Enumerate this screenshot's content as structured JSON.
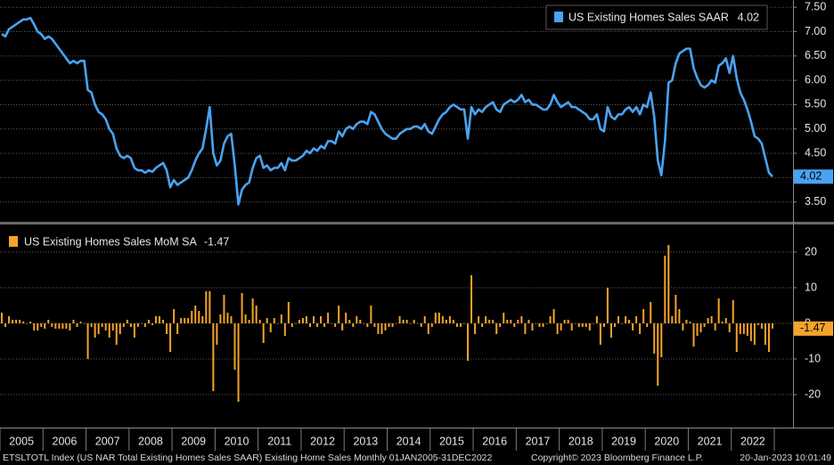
{
  "chart_data": [
    {
      "type": "line",
      "name": "US Existing Homes Sales SAAR",
      "color": "#4aa3f2",
      "ylim": [
        3.11,
        7.65
      ],
      "yticks": [
        {
          "value": 3.5,
          "label": "3.50"
        },
        {
          "value": 4,
          "label": "4.00"
        },
        {
          "value": 4.5,
          "label": "4.50"
        },
        {
          "value": 5,
          "label": "5.00"
        },
        {
          "value": 5.5,
          "label": "5.50"
        },
        {
          "value": 6,
          "label": "6.00"
        },
        {
          "value": 6.5,
          "label": "6.50"
        },
        {
          "value": 7,
          "label": "7.00"
        },
        {
          "value": 7.5,
          "label": "7.50"
        }
      ],
      "grid": true,
      "values": [
        6.95,
        6.9,
        7.05,
        7.1,
        7.15,
        7.2,
        7.25,
        7.25,
        7.28,
        7.15,
        7.0,
        6.95,
        6.85,
        6.9,
        6.85,
        6.75,
        6.65,
        6.55,
        6.45,
        6.35,
        6.4,
        6.35,
        6.4,
        6.4,
        5.8,
        5.75,
        5.5,
        5.35,
        5.3,
        5.2,
        5.0,
        4.9,
        4.6,
        4.45,
        4.4,
        4.45,
        4.4,
        4.2,
        4.15,
        4.15,
        4.1,
        4.15,
        4.12,
        4.2,
        4.25,
        4.3,
        4.15,
        3.8,
        3.95,
        3.85,
        3.9,
        3.95,
        4.0,
        4.15,
        4.35,
        4.5,
        4.6,
        5.0,
        5.45,
        4.5,
        4.25,
        4.35,
        4.7,
        4.85,
        4.9,
        4.25,
        3.45,
        3.75,
        3.85,
        3.9,
        4.2,
        4.4,
        4.45,
        4.2,
        4.25,
        4.15,
        4.2,
        4.2,
        4.3,
        4.15,
        4.4,
        4.35,
        4.35,
        4.4,
        4.45,
        4.55,
        4.5,
        4.6,
        4.55,
        4.65,
        4.6,
        4.75,
        4.75,
        4.7,
        4.95,
        4.85,
        5.0,
        5.05,
        5.0,
        5.1,
        5.15,
        5.15,
        5.1,
        5.35,
        5.3,
        5.15,
        5.0,
        4.9,
        4.85,
        4.8,
        4.8,
        4.9,
        4.95,
        5.0,
        5.0,
        5.05,
        5.05,
        5.0,
        5.1,
        4.95,
        4.9,
        5.05,
        5.2,
        5.3,
        5.35,
        5.45,
        5.5,
        5.45,
        5.4,
        5.4,
        4.8,
        5.45,
        5.3,
        5.4,
        5.35,
        5.45,
        5.5,
        5.55,
        5.4,
        5.35,
        5.5,
        5.55,
        5.6,
        5.55,
        5.6,
        5.7,
        5.55,
        5.6,
        5.5,
        5.5,
        5.45,
        5.4,
        5.4,
        5.5,
        5.7,
        5.55,
        5.45,
        5.5,
        5.55,
        5.45,
        5.45,
        5.4,
        5.35,
        5.3,
        5.2,
        5.2,
        5.3,
        5.0,
        4.95,
        5.45,
        5.25,
        5.2,
        5.3,
        5.3,
        5.4,
        5.45,
        5.35,
        5.45,
        5.3,
        5.5,
        5.45,
        5.75,
        5.25,
        4.35,
        4.05,
        4.75,
        5.95,
        6.0,
        6.35,
        6.55,
        6.6,
        6.65,
        6.65,
        6.25,
        6.05,
        5.9,
        5.85,
        5.9,
        6.0,
        5.95,
        6.3,
        6.35,
        6.45,
        6.15,
        6.5,
        6.05,
        5.75,
        5.6,
        5.4,
        5.15,
        4.85,
        4.8,
        4.7,
        4.4,
        4.1,
        4.02
      ]
    },
    {
      "type": "bar",
      "name": "US Existing Homes Sales MoM SA",
      "color": "#f5a32a",
      "ylim": [
        -28.75,
        27.25
      ],
      "yticks": [
        -20,
        -10,
        0,
        10,
        20
      ],
      "grid": true,
      "categories": [
        null,
        null,
        null,
        null,
        null,
        null,
        "2005",
        null,
        null,
        null,
        null,
        null,
        null,
        null,
        null,
        null,
        null,
        null,
        "2006",
        null,
        null,
        null,
        null,
        null,
        null,
        null,
        null,
        null,
        null,
        null,
        "2007",
        null,
        null,
        null,
        null,
        null,
        null,
        null,
        null,
        null,
        null,
        null,
        "2008",
        null,
        null,
        null,
        null,
        null,
        null,
        null,
        null,
        null,
        null,
        null,
        "2009",
        null,
        null,
        null,
        null,
        null,
        null,
        null,
        null,
        null,
        null,
        null,
        "2010",
        null,
        null,
        null,
        null,
        null,
        null,
        null,
        null,
        null,
        null,
        null,
        "2011",
        null,
        null,
        null,
        null,
        null,
        null,
        null,
        null,
        null,
        null,
        null,
        "2012",
        null,
        null,
        null,
        null,
        null,
        null,
        null,
        null,
        null,
        null,
        null,
        "2013",
        null,
        null,
        null,
        null,
        null,
        null,
        null,
        null,
        null,
        null,
        null,
        "2014",
        null,
        null,
        null,
        null,
        null,
        null,
        null,
        null,
        null,
        null,
        null,
        "2015",
        null,
        null,
        null,
        null,
        null,
        null,
        null,
        null,
        null,
        null,
        null,
        "2016",
        null,
        null,
        null,
        null,
        null,
        null,
        null,
        null,
        null,
        null,
        null,
        "2017",
        null,
        null,
        null,
        null,
        null,
        null,
        null,
        null,
        null,
        null,
        null,
        "2018",
        null,
        null,
        null,
        null,
        null,
        null,
        null,
        null,
        null,
        null,
        null,
        "2019",
        null,
        null,
        null,
        null,
        null,
        null,
        null,
        null,
        null,
        null,
        null,
        "2020",
        null,
        null,
        null,
        null,
        null,
        null,
        null,
        null,
        null,
        null,
        null,
        "2021",
        null,
        null,
        null,
        null,
        null,
        null,
        null,
        null,
        null,
        null,
        null,
        "2022",
        null,
        null,
        null,
        null,
        null
      ],
      "values": [
        3,
        -1,
        2,
        1,
        1,
        1,
        0.5,
        0,
        0.5,
        -2,
        -2,
        -1,
        -1.5,
        1,
        -1,
        -1.5,
        -1.5,
        -1.5,
        -1.5,
        -2,
        1,
        -1,
        0.5,
        0,
        -10,
        -1,
        -4,
        -3,
        -1,
        -2,
        -4,
        -2,
        -6,
        -3,
        -1,
        1,
        -1,
        -4,
        -1,
        0,
        -1,
        1,
        -0.5,
        2,
        2,
        1,
        -3,
        -8,
        4,
        -3,
        1.5,
        1.5,
        1.5,
        3.5,
        5,
        3.5,
        2,
        9,
        9,
        -19,
        -6,
        2.5,
        8,
        3,
        2,
        -13,
        -22,
        8.5,
        2.5,
        1,
        7,
        5,
        1,
        -5.5,
        1.5,
        -2.5,
        1.5,
        0,
        2.5,
        -3.5,
        6,
        -1,
        0,
        1,
        1.5,
        2,
        -1,
        2,
        -1,
        2,
        -1,
        3,
        0,
        -1,
        5,
        -2,
        3,
        1,
        -1,
        2,
        1,
        0,
        -1,
        5,
        -1,
        -3,
        -3,
        -2,
        -1,
        -1,
        0,
        2,
        1,
        1,
        0,
        1,
        0,
        -1,
        2,
        -3,
        -1,
        3,
        3,
        2,
        1,
        2,
        1,
        -1,
        -1,
        0,
        -10.5,
        13.5,
        -3,
        2,
        -1,
        2,
        1,
        1,
        -3,
        -1,
        3,
        1,
        1,
        -1,
        1,
        2,
        -3,
        1,
        -2,
        0,
        -1,
        -1,
        0,
        2,
        4,
        -3,
        -2,
        1,
        1,
        -2,
        0,
        -1,
        -1,
        -1,
        -2,
        0,
        2,
        -6,
        -1,
        10,
        -4,
        -1,
        2,
        0,
        2,
        1,
        -2,
        2,
        -3,
        4,
        -1,
        6,
        -8.5,
        -17.5,
        -9.5,
        19,
        22,
        2,
        8,
        4,
        -2,
        1,
        0.5,
        -6.5,
        -3.5,
        -2.5,
        -1,
        1.5,
        2,
        -2,
        7,
        0.5,
        1.5,
        -2.5,
        6.5,
        -8,
        -3,
        -3,
        -3.5,
        -5,
        -6,
        -0.5,
        -1.5,
        -6,
        -8,
        -1.47
      ]
    }
  ],
  "footer": {
    "source": "ETSLTOTL Index (US NAR Total Existing Homes Sales SAAR) Existing Home Sales  Monthly 01JAN2005-31DEC2022",
    "copyright": "Copyright© 2023 Bloomberg Finance L.P.",
    "timestamp": "20-Jan-2023 10:01:49"
  }
}
